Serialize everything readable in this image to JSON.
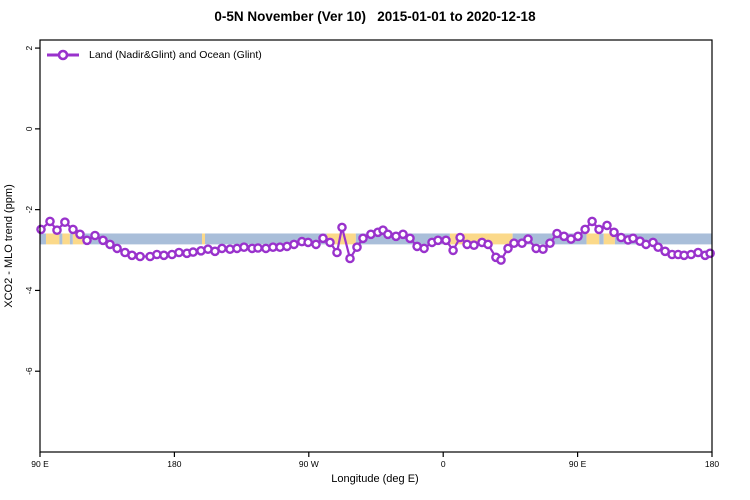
{
  "title": "0-5N November (Ver 10)   2015-01-01 to 2020-12-18",
  "legend": {
    "label": "Land (Nadir&Glint) and Ocean (Glint)",
    "marker": "open-circle"
  },
  "colors": {
    "series": "#9932CC",
    "marker_fill": "#ffffff",
    "band_blue": "#A9BED9",
    "band_yellow": "#FBD98A",
    "axis": "#000000",
    "background": "#ffffff"
  },
  "chart_data": {
    "type": "line",
    "title": "0-5N November (Ver 10)   2015-01-01 to 2020-12-18",
    "xlabel": "Longitude (deg E)",
    "ylabel": "XCO2 - MLO trend (ppm)",
    "xlim": [
      90,
      540
    ],
    "ylim": [
      -8.0,
      2.2
    ],
    "grid": false,
    "legend_position": "top-left",
    "x_ticks": [
      {
        "lon": 90,
        "label": "90 E"
      },
      {
        "lon": 180,
        "label": "180"
      },
      {
        "lon": 270,
        "label": "90 W"
      },
      {
        "lon": 360,
        "label": "0"
      },
      {
        "lon": 450,
        "label": "90 E"
      },
      {
        "lon": 540,
        "label": "180"
      }
    ],
    "y_ticks": [
      {
        "v": 2,
        "label": "2"
      },
      {
        "v": 0,
        "label": "0"
      },
      {
        "v": -2,
        "label": "-2"
      },
      {
        "v": -4,
        "label": "-4"
      },
      {
        "v": -6,
        "label": "-6"
      }
    ],
    "band": {
      "y_range": [
        -2.59,
        -2.86
      ],
      "segments": [
        {
          "from": 90,
          "to": 94,
          "color": "blue"
        },
        {
          "from": 94,
          "to": 103,
          "color": "yellow"
        },
        {
          "from": 103,
          "to": 105,
          "color": "blue"
        },
        {
          "from": 105,
          "to": 110,
          "color": "yellow"
        },
        {
          "from": 110,
          "to": 112,
          "color": "blue"
        },
        {
          "from": 112,
          "to": 119,
          "color": "yellow"
        },
        {
          "from": 119,
          "to": 198.5,
          "color": "blue"
        },
        {
          "from": 198.5,
          "to": 200.5,
          "color": "yellow"
        },
        {
          "from": 200.5,
          "to": 282,
          "color": "blue"
        },
        {
          "from": 282,
          "to": 301.5,
          "color": "yellow"
        },
        {
          "from": 301.5,
          "to": 364.5,
          "color": "blue"
        },
        {
          "from": 364.5,
          "to": 406.5,
          "color": "yellow"
        },
        {
          "from": 406.5,
          "to": 456,
          "color": "blue"
        },
        {
          "from": 456,
          "to": 464.5,
          "color": "yellow"
        },
        {
          "from": 464.5,
          "to": 467.5,
          "color": "blue"
        },
        {
          "from": 467.5,
          "to": 475,
          "color": "yellow"
        },
        {
          "from": 475,
          "to": 540,
          "color": "blue"
        }
      ]
    },
    "series": [
      {
        "name": "Land (Nadir&Glint) and Ocean (Glint)",
        "marker": "open-circle",
        "color": "#9932CC",
        "x": [
          90.7,
          96.7,
          101.4,
          106.7,
          112.1,
          116.8,
          121.5,
          126.8,
          132.2,
          136.9,
          141.6,
          146.9,
          151.6,
          157.0,
          163.7,
          168.3,
          173.0,
          178.4,
          183.1,
          188.4,
          192.5,
          197.8,
          202.5,
          207.2,
          211.9,
          217.2,
          221.9,
          226.6,
          232.0,
          236.0,
          241.3,
          246.0,
          250.7,
          255.4,
          260.1,
          265.4,
          269.5,
          274.8,
          279.5,
          284.2,
          288.9,
          292.2,
          297.6,
          302.3,
          306.3,
          311.6,
          316.3,
          319.7,
          323.0,
          328.4,
          333.1,
          337.8,
          342.5,
          347.2,
          352.5,
          356.5,
          361.9,
          366.6,
          371.3,
          376.0,
          380.6,
          386.0,
          390.0,
          395.3,
          398.7,
          403.4,
          407.4,
          412.8,
          416.8,
          422.2,
          426.8,
          431.5,
          436.2,
          440.9,
          445.6,
          450.3,
          455.0,
          459.7,
          464.3,
          469.7,
          474.4,
          479.1,
          483.8,
          487.1,
          491.8,
          495.8,
          500.5,
          503.9,
          508.6,
          513.3,
          517.3,
          521.3,
          526.0,
          530.7,
          535.4,
          538.7
        ],
        "y": [
          -2.49,
          -2.29,
          -2.51,
          -2.31,
          -2.49,
          -2.61,
          -2.76,
          -2.64,
          -2.76,
          -2.86,
          -2.96,
          -3.06,
          -3.13,
          -3.16,
          -3.16,
          -3.11,
          -3.13,
          -3.11,
          -3.06,
          -3.08,
          -3.05,
          -3.02,
          -2.98,
          -3.03,
          -2.96,
          -2.98,
          -2.96,
          -2.93,
          -2.96,
          -2.95,
          -2.96,
          -2.93,
          -2.93,
          -2.91,
          -2.86,
          -2.79,
          -2.81,
          -2.86,
          -2.71,
          -2.81,
          -3.06,
          -2.44,
          -3.21,
          -2.93,
          -2.71,
          -2.61,
          -2.56,
          -2.51,
          -2.61,
          -2.66,
          -2.61,
          -2.71,
          -2.91,
          -2.96,
          -2.81,
          -2.76,
          -2.76,
          -3.01,
          -2.69,
          -2.86,
          -2.88,
          -2.81,
          -2.86,
          -3.18,
          -3.25,
          -2.96,
          -2.83,
          -2.83,
          -2.73,
          -2.96,
          -2.98,
          -2.83,
          -2.59,
          -2.66,
          -2.73,
          -2.66,
          -2.49,
          -2.29,
          -2.49,
          -2.39,
          -2.56,
          -2.69,
          -2.75,
          -2.71,
          -2.78,
          -2.86,
          -2.81,
          -2.93,
          -3.03,
          -3.11,
          -3.11,
          -3.13,
          -3.11,
          -3.06,
          -3.13,
          -3.08
        ]
      }
    ]
  }
}
